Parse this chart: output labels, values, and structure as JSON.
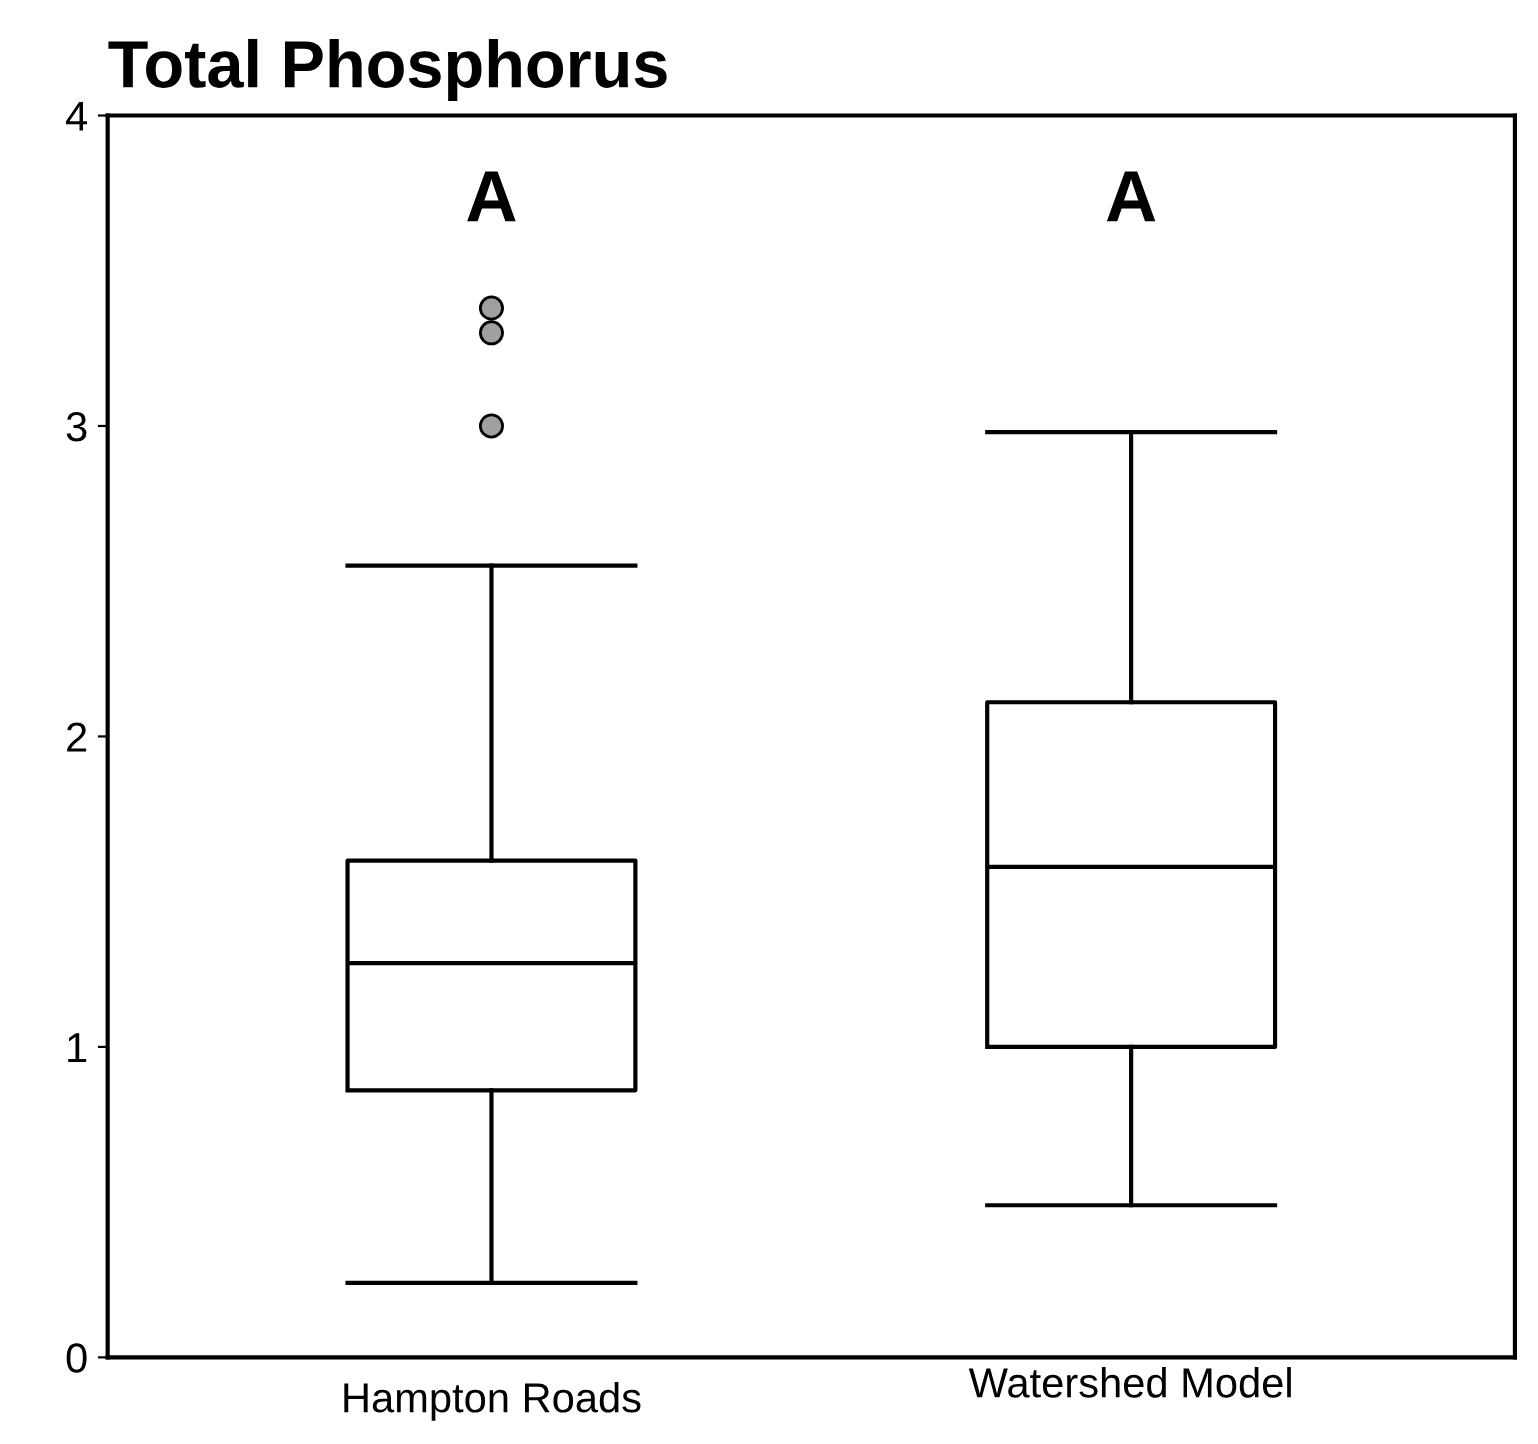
{
  "chart_data": {
    "type": "box",
    "title": "Total Phosphorus",
    "categories": [
      "Hampton Roads",
      "Watershed Model"
    ],
    "boxes": [
      {
        "low": 0.24,
        "q1": 0.86,
        "median": 1.27,
        "q3": 1.6,
        "high": 2.55,
        "outliers": [
          3.0,
          3.3,
          3.38
        ]
      },
      {
        "low": 0.49,
        "q1": 1.0,
        "median": 1.58,
        "q3": 2.11,
        "high": 2.98
      }
    ],
    "ylim": [
      0,
      4
    ],
    "yticks": [
      0,
      1,
      2,
      3,
      4
    ],
    "grid": false,
    "legend": false,
    "annotations": [
      "A",
      "A"
    ]
  }
}
